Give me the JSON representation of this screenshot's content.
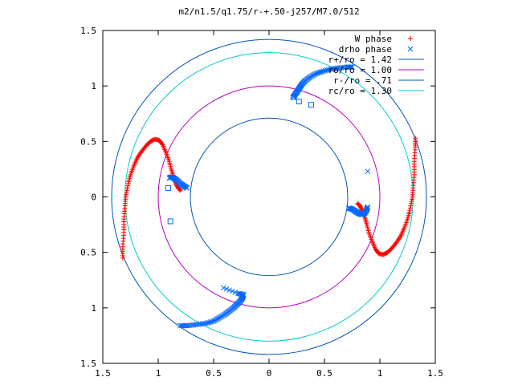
{
  "chart_data": {
    "type": "scatter",
    "title": "m2/n1.5/q1.75/r-+.50-j257/M7.0/512",
    "xlim": [
      -1.5,
      1.5
    ],
    "ylim": [
      -1.5,
      1.5
    ],
    "xticks": [
      -1.5,
      -1,
      -0.5,
      0,
      0.5,
      1,
      1.5
    ],
    "yticks": [
      -1.5,
      -1,
      -0.5,
      0,
      0.5,
      1,
      1.5
    ],
    "xtick_labels": [
      "1.5",
      "1",
      "0.5",
      "0",
      "0.5",
      "1",
      "1.5"
    ],
    "ytick_labels": [
      "1.5",
      "1",
      "0.5",
      "0",
      "0.5",
      "1",
      "1.5"
    ],
    "grid": false,
    "legend_position": "top-right",
    "series": [
      {
        "name": "W phase",
        "marker": "+",
        "color": "#ff0000",
        "x": [
          -1.32,
          -1.32,
          -1.31,
          -1.31,
          -1.3,
          -1.29,
          -1.27,
          -1.25,
          -1.22,
          -1.19,
          -1.15,
          -1.11,
          -1.07,
          -1.03,
          -0.99,
          -0.96,
          -0.93,
          -0.9,
          -0.88,
          -0.86,
          -0.84,
          -0.82,
          -0.8,
          1.32,
          1.32,
          1.31,
          1.31,
          1.3,
          1.29,
          1.27,
          1.25,
          1.22,
          1.19,
          1.15,
          1.11,
          1.07,
          1.03,
          0.99,
          0.96,
          0.93,
          0.9,
          0.88,
          0.86,
          0.84,
          0.82,
          0.8
        ],
        "y": [
          -0.55,
          -0.45,
          -0.32,
          -0.2,
          -0.08,
          0.02,
          0.12,
          0.2,
          0.28,
          0.35,
          0.41,
          0.46,
          0.5,
          0.52,
          0.51,
          0.47,
          0.4,
          0.32,
          0.24,
          0.17,
          0.12,
          0.08,
          0.06,
          0.53,
          0.45,
          0.32,
          0.2,
          0.08,
          -0.02,
          -0.12,
          -0.2,
          -0.28,
          -0.35,
          -0.41,
          -0.46,
          -0.5,
          -0.52,
          -0.51,
          -0.47,
          -0.4,
          -0.32,
          -0.24,
          -0.17,
          -0.12,
          -0.08,
          -0.06
        ]
      },
      {
        "name": "drho phase",
        "marker": "x",
        "color": "#0066ff",
        "x": [
          -0.9,
          -0.88,
          -0.86,
          -0.83,
          -0.8,
          -0.77,
          -0.74,
          0.72,
          0.75,
          0.78,
          0.81,
          0.84,
          0.86,
          0.88,
          0.89,
          0.89,
          0.22,
          0.24,
          0.26,
          0.28,
          0.3,
          0.33,
          0.37,
          0.42,
          0.48,
          0.55,
          0.62,
          0.7,
          0.75,
          -0.8,
          -0.73,
          -0.65,
          -0.57,
          -0.5,
          -0.45,
          -0.4,
          -0.36,
          -0.32,
          -0.29,
          -0.26,
          -0.24,
          -0.23,
          -0.28,
          -0.41
        ],
        "y": [
          0.17,
          0.18,
          0.17,
          0.15,
          0.12,
          0.1,
          0.08,
          -0.1,
          -0.11,
          -0.13,
          -0.15,
          -0.16,
          -0.15,
          -0.12,
          -0.09,
          0.23,
          0.9,
          0.93,
          0.96,
          0.99,
          1.02,
          1.05,
          1.08,
          1.11,
          1.13,
          1.15,
          1.16,
          1.17,
          1.17,
          -1.16,
          -1.16,
          -1.15,
          -1.14,
          -1.12,
          -1.09,
          -1.06,
          -1.03,
          -1.0,
          -0.97,
          -0.94,
          -0.91,
          -0.88,
          -0.87,
          -0.82
        ]
      }
    ],
    "outliers": {
      "marker": "square",
      "color": "#0066ff",
      "x": [
        -0.91,
        -0.89,
        0.27,
        0.38,
        0.22
      ],
      "y": [
        0.08,
        -0.22,
        0.86,
        0.83,
        0.9
      ]
    },
    "circles": [
      {
        "name": "r+/ro = 1.42",
        "r": 1.42,
        "color": "#0055bb"
      },
      {
        "name": "ro/ro = 1.00",
        "r": 1.0,
        "color": "#bb00bb"
      },
      {
        "name": "r-/ro = .71",
        "r": 0.71,
        "color": "#0055bb"
      },
      {
        "name": "rc/ro = 1.30",
        "r": 1.3,
        "color": "#00cccc"
      }
    ]
  }
}
